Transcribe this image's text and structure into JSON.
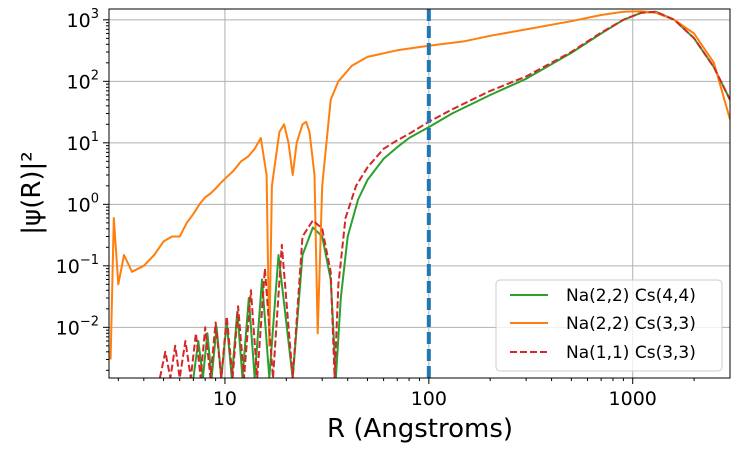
{
  "chart_data": {
    "type": "line",
    "xlabel": "R (Angstroms)",
    "ylabel": "|ψ(R)|²",
    "xscale": "log",
    "yscale": "log",
    "xlim": [
      2.7,
      3000
    ],
    "ylim": [
      0.0015,
      1500
    ],
    "grid": true,
    "legend_position": "lower-right",
    "x_ticks": [
      {
        "value": 10,
        "label": "10"
      },
      {
        "value": 100,
        "label": "100"
      },
      {
        "value": 1000,
        "label": "1000"
      }
    ],
    "y_ticks": [
      {
        "value": 0.01,
        "base": "10",
        "exp": "−2"
      },
      {
        "value": 0.1,
        "base": "10",
        "exp": "−1"
      },
      {
        "value": 1,
        "base": "10",
        "exp": "0"
      },
      {
        "value": 10,
        "base": "10",
        "exp": "1"
      },
      {
        "value": 100,
        "base": "10",
        "exp": "2"
      },
      {
        "value": 1000,
        "base": "10",
        "exp": "3"
      }
    ],
    "vline": {
      "x": 100,
      "color": "#1f77b4",
      "style": "dashed"
    },
    "series": [
      {
        "name": "Na(2,2) Cs(4,4)",
        "color": "#2ca02c",
        "dash": "solid",
        "points": [
          [
            7,
            0.0015
          ],
          [
            7.4,
            0.006
          ],
          [
            7.8,
            0.0015
          ],
          [
            8.2,
            0.008
          ],
          [
            8.6,
            0.0015
          ],
          [
            9.1,
            0.01
          ],
          [
            9.6,
            0.0015
          ],
          [
            10.2,
            0.012
          ],
          [
            10.8,
            0.0015
          ],
          [
            11.5,
            0.018
          ],
          [
            12.2,
            0.0015
          ],
          [
            13.1,
            0.03
          ],
          [
            14,
            0.0015
          ],
          [
            15.2,
            0.06
          ],
          [
            16.5,
            0.0015
          ],
          [
            18.3,
            0.15
          ],
          [
            21.5,
            0.0015
          ],
          [
            24,
            0.15
          ],
          [
            27,
            0.42
          ],
          [
            30,
            0.3
          ],
          [
            33,
            0.06
          ],
          [
            35,
            0.0015
          ],
          [
            37,
            0.03
          ],
          [
            40,
            0.3
          ],
          [
            45,
            1.2
          ],
          [
            50,
            2.5
          ],
          [
            60,
            5.5
          ],
          [
            70,
            8.5
          ],
          [
            80,
            12
          ],
          [
            100,
            18
          ],
          [
            130,
            30
          ],
          [
            200,
            60
          ],
          [
            300,
            110
          ],
          [
            500,
            290
          ],
          [
            700,
            600
          ],
          [
            900,
            1000
          ],
          [
            1100,
            1300
          ],
          [
            1300,
            1350
          ],
          [
            1600,
            1000
          ],
          [
            2000,
            500
          ],
          [
            2500,
            170
          ],
          [
            3000,
            50
          ]
        ]
      },
      {
        "name": "Na(2,2) Cs(3,3)",
        "color": "#ff7f0e",
        "dash": "solid",
        "points": [
          [
            2.75,
            0.003
          ],
          [
            2.85,
            0.6
          ],
          [
            3,
            0.05
          ],
          [
            3.2,
            0.15
          ],
          [
            3.5,
            0.08
          ],
          [
            4,
            0.1
          ],
          [
            4.5,
            0.15
          ],
          [
            5,
            0.25
          ],
          [
            5.5,
            0.3
          ],
          [
            6,
            0.3
          ],
          [
            6.5,
            0.5
          ],
          [
            7,
            0.7
          ],
          [
            7.5,
            1
          ],
          [
            8,
            1.3
          ],
          [
            8.5,
            1.5
          ],
          [
            9,
            1.8
          ],
          [
            9.5,
            2.2
          ],
          [
            10,
            2.6
          ],
          [
            11,
            3.5
          ],
          [
            12,
            5
          ],
          [
            13,
            6
          ],
          [
            14,
            8
          ],
          [
            15,
            12
          ],
          [
            16,
            3
          ],
          [
            16.5,
            0.005
          ],
          [
            17,
            2
          ],
          [
            18.5,
            15
          ],
          [
            19.5,
            20
          ],
          [
            20.5,
            10
          ],
          [
            21.5,
            3
          ],
          [
            22.5,
            10
          ],
          [
            24,
            20
          ],
          [
            25,
            22
          ],
          [
            26,
            15
          ],
          [
            27.5,
            3
          ],
          [
            28.5,
            0.008
          ],
          [
            30,
            2
          ],
          [
            33,
            50
          ],
          [
            36,
            100
          ],
          [
            42,
            180
          ],
          [
            50,
            250
          ],
          [
            70,
            320
          ],
          [
            100,
            380
          ],
          [
            150,
            450
          ],
          [
            200,
            550
          ],
          [
            300,
            700
          ],
          [
            500,
            950
          ],
          [
            700,
            1200
          ],
          [
            900,
            1350
          ],
          [
            1100,
            1380
          ],
          [
            1300,
            1300
          ],
          [
            1600,
            1000
          ],
          [
            2000,
            600
          ],
          [
            2500,
            200
          ],
          [
            3000,
            24
          ]
        ]
      },
      {
        "name": "Na(1,1) Cs(3,3)",
        "color": "#d62728",
        "dash": "dashed",
        "points": [
          [
            4.8,
            0.0015
          ],
          [
            5.1,
            0.004
          ],
          [
            5.4,
            0.0015
          ],
          [
            5.7,
            0.005
          ],
          [
            6,
            0.0015
          ],
          [
            6.4,
            0.006
          ],
          [
            6.8,
            0.0015
          ],
          [
            7.2,
            0.008
          ],
          [
            7.6,
            0.0015
          ],
          [
            8,
            0.01
          ],
          [
            8.5,
            0.0015
          ],
          [
            9,
            0.012
          ],
          [
            9.6,
            0.0015
          ],
          [
            10.2,
            0.015
          ],
          [
            10.9,
            0.0015
          ],
          [
            11.6,
            0.022
          ],
          [
            12.4,
            0.0015
          ],
          [
            13.4,
            0.04
          ],
          [
            14.4,
            0.0015
          ],
          [
            15.7,
            0.09
          ],
          [
            17.2,
            0.0015
          ],
          [
            19,
            0.22
          ],
          [
            21.5,
            0.0015
          ],
          [
            24,
            0.3
          ],
          [
            27,
            0.55
          ],
          [
            30,
            0.4
          ],
          [
            33,
            0.08
          ],
          [
            34.5,
            0.0015
          ],
          [
            36,
            0.05
          ],
          [
            39,
            0.6
          ],
          [
            44,
            2
          ],
          [
            50,
            4
          ],
          [
            60,
            8
          ],
          [
            70,
            11
          ],
          [
            80,
            14
          ],
          [
            100,
            22
          ],
          [
            130,
            35
          ],
          [
            200,
            70
          ],
          [
            300,
            120
          ],
          [
            500,
            300
          ],
          [
            700,
            620
          ],
          [
            900,
            1000
          ],
          [
            1100,
            1300
          ],
          [
            1300,
            1350
          ],
          [
            1600,
            1000
          ],
          [
            2000,
            500
          ],
          [
            2500,
            170
          ],
          [
            3000,
            50
          ]
        ]
      }
    ]
  }
}
